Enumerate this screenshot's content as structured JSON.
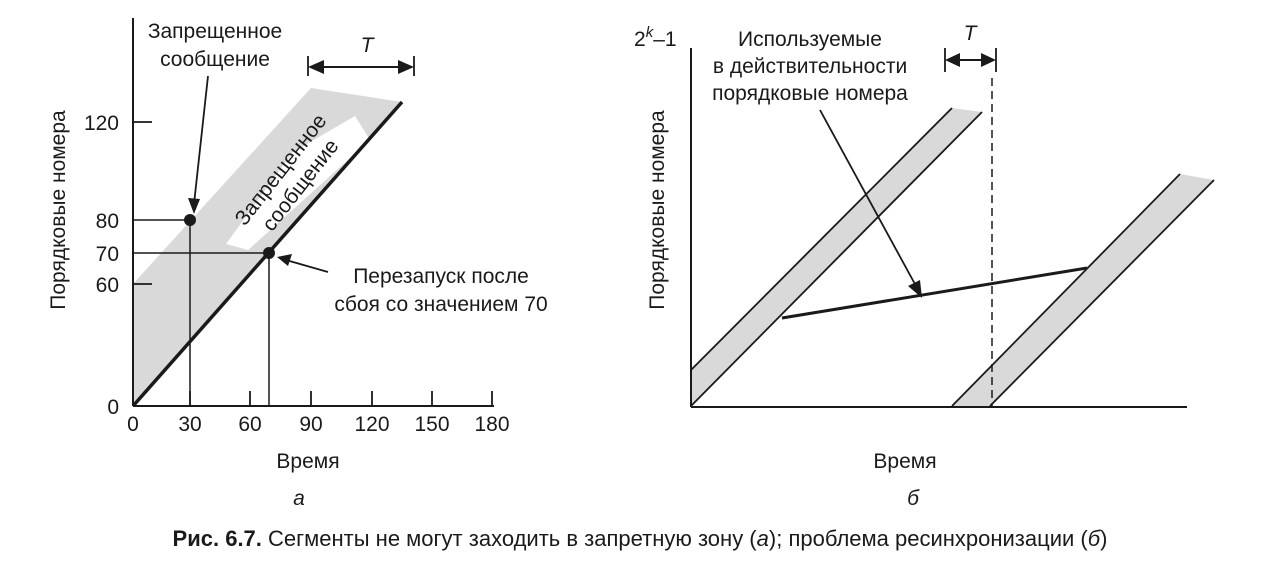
{
  "panel_a": {
    "ylabel": "Порядковые номера",
    "xlabel": "Время",
    "x_ticks": [
      "0",
      "30",
      "60",
      "90",
      "120",
      "150",
      "180"
    ],
    "y_ticks": [
      "0",
      "60",
      "70",
      "80",
      "120"
    ],
    "forbidden_label": [
      "Запрещенное",
      "сообщение"
    ],
    "forbidden_band_label": [
      "Запрещенное",
      "сообщение"
    ],
    "T_label": "T",
    "restart_label": [
      "Перезапуск после",
      "сбоя со значением 70"
    ],
    "panel_letter": "а"
  },
  "panel_b": {
    "ylabel": "Порядковые номера",
    "xlabel": "Время",
    "y_top": "2",
    "y_top_sup": "k",
    "y_top_tail": "–1",
    "used_label": [
      "Используемые",
      "в действительности",
      "порядковые номера"
    ],
    "T_label": "T",
    "panel_letter": "б"
  },
  "caption": {
    "bold": "Рис. 6.7.",
    "text_1": " Сегменты не могут заходить в запретную зону (",
    "italic_1": "а",
    "text_2": "); проблема ресинхронизации (",
    "italic_2": "б",
    "text_3": ")"
  },
  "colors": {
    "band": "#d9d9d9",
    "ink": "#1a1a1a"
  }
}
